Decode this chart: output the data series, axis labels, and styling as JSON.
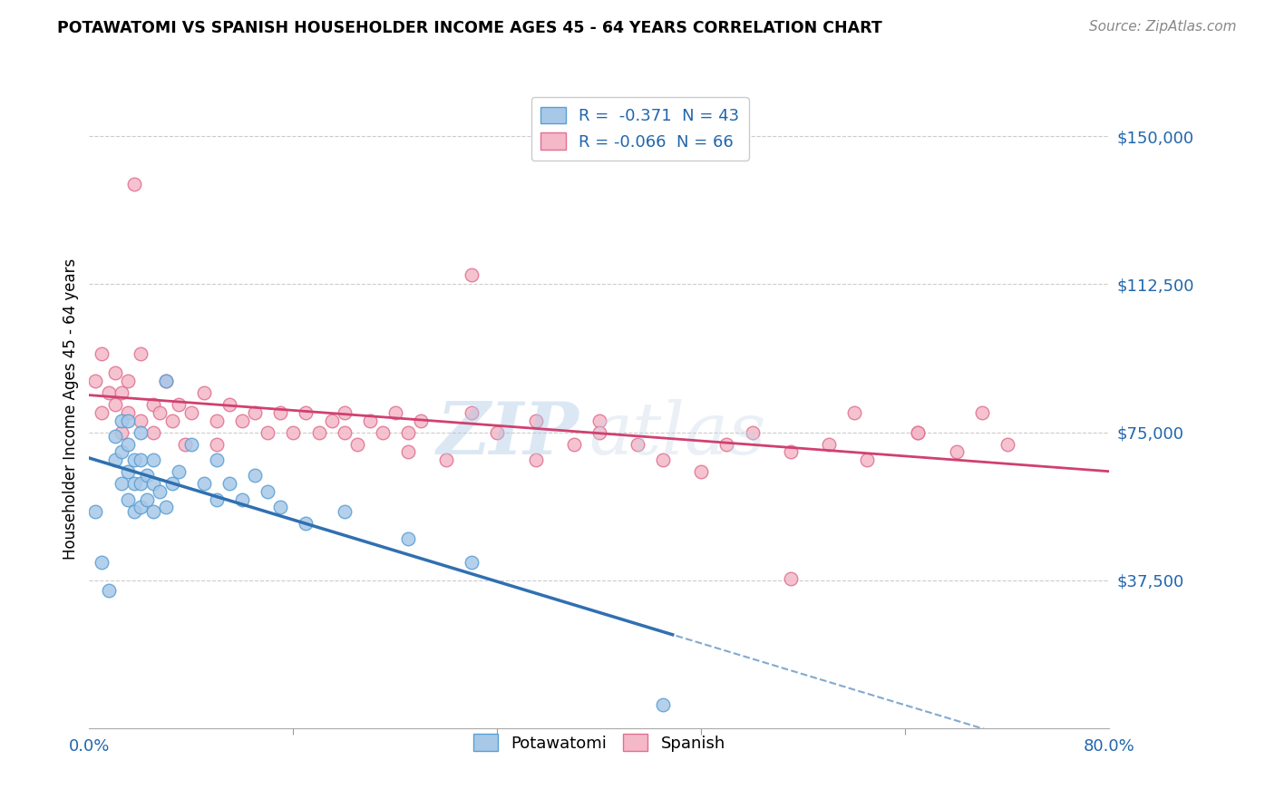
{
  "title": "POTAWATOMI VS SPANISH HOUSEHOLDER INCOME AGES 45 - 64 YEARS CORRELATION CHART",
  "source": "Source: ZipAtlas.com",
  "ylabel": "Householder Income Ages 45 - 64 years",
  "yticks": [
    0,
    37500,
    75000,
    112500,
    150000
  ],
  "ytick_labels": [
    "",
    "$37,500",
    "$75,000",
    "$112,500",
    "$150,000"
  ],
  "xmin": 0.0,
  "xmax": 0.8,
  "ymin": 0,
  "ymax": 162000,
  "watermark_zip": "ZIP",
  "watermark_atlas": "atlas",
  "legend_r1": "R =  -0.371  N = 43",
  "legend_r2": "R = -0.066  N = 66",
  "blue_fill": "#a8c8e8",
  "blue_edge": "#5a9fd4",
  "pink_fill": "#f4b8c8",
  "pink_edge": "#e07090",
  "blue_line": "#3070b0",
  "pink_line": "#d04070",
  "potawatomi_x": [
    0.005,
    0.01,
    0.015,
    0.02,
    0.02,
    0.025,
    0.025,
    0.025,
    0.03,
    0.03,
    0.03,
    0.03,
    0.035,
    0.035,
    0.035,
    0.04,
    0.04,
    0.04,
    0.04,
    0.045,
    0.045,
    0.05,
    0.05,
    0.05,
    0.055,
    0.06,
    0.06,
    0.065,
    0.07,
    0.08,
    0.09,
    0.1,
    0.1,
    0.11,
    0.12,
    0.13,
    0.14,
    0.15,
    0.17,
    0.2,
    0.25,
    0.3,
    0.45
  ],
  "potawatomi_y": [
    55000,
    42000,
    35000,
    68000,
    74000,
    62000,
    70000,
    78000,
    58000,
    65000,
    72000,
    78000,
    55000,
    62000,
    68000,
    56000,
    62000,
    68000,
    75000,
    58000,
    64000,
    55000,
    62000,
    68000,
    60000,
    88000,
    56000,
    62000,
    65000,
    72000,
    62000,
    58000,
    68000,
    62000,
    58000,
    64000,
    60000,
    56000,
    52000,
    55000,
    48000,
    42000,
    6000
  ],
  "spanish_x": [
    0.005,
    0.01,
    0.01,
    0.015,
    0.02,
    0.02,
    0.025,
    0.025,
    0.03,
    0.03,
    0.035,
    0.04,
    0.04,
    0.05,
    0.05,
    0.055,
    0.06,
    0.065,
    0.07,
    0.075,
    0.08,
    0.09,
    0.1,
    0.1,
    0.11,
    0.12,
    0.13,
    0.14,
    0.15,
    0.16,
    0.17,
    0.18,
    0.19,
    0.2,
    0.21,
    0.22,
    0.23,
    0.24,
    0.25,
    0.26,
    0.28,
    0.3,
    0.32,
    0.35,
    0.38,
    0.4,
    0.43,
    0.48,
    0.52,
    0.55,
    0.58,
    0.61,
    0.65,
    0.68,
    0.72,
    0.2,
    0.3,
    0.25,
    0.35,
    0.4,
    0.45,
    0.5,
    0.55,
    0.6,
    0.65,
    0.7
  ],
  "spanish_y": [
    88000,
    80000,
    95000,
    85000,
    82000,
    90000,
    75000,
    85000,
    80000,
    88000,
    138000,
    95000,
    78000,
    82000,
    75000,
    80000,
    88000,
    78000,
    82000,
    72000,
    80000,
    85000,
    78000,
    72000,
    82000,
    78000,
    80000,
    75000,
    80000,
    75000,
    80000,
    75000,
    78000,
    80000,
    72000,
    78000,
    75000,
    80000,
    75000,
    78000,
    68000,
    80000,
    75000,
    68000,
    72000,
    78000,
    72000,
    65000,
    75000,
    70000,
    72000,
    68000,
    75000,
    70000,
    72000,
    75000,
    115000,
    70000,
    78000,
    75000,
    68000,
    72000,
    38000,
    80000,
    75000,
    80000
  ]
}
